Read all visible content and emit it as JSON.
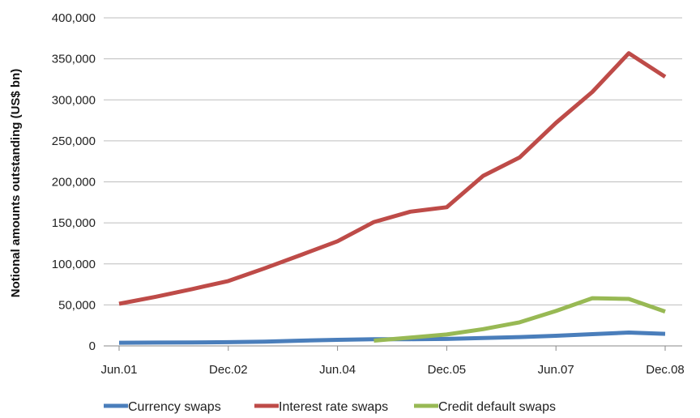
{
  "chart_data": {
    "type": "line",
    "title": "",
    "xlabel": "",
    "ylabel": "Notional amounts outstanding (US$ bn)",
    "ylim": [
      0,
      400000
    ],
    "yticks": [
      0,
      50000,
      100000,
      150000,
      200000,
      250000,
      300000,
      350000,
      400000
    ],
    "ytick_labels": [
      "0",
      "50,000",
      "100,000",
      "150,000",
      "200,000",
      "250,000",
      "300,000",
      "350,000",
      "400,000"
    ],
    "x": [
      "Jun.01",
      "Dec.01",
      "Jun.02",
      "Dec.02",
      "Jun.03",
      "Dec.03",
      "Jun.04",
      "Dec.04",
      "Jun.05",
      "Dec.05",
      "Jun.06",
      "Dec.06",
      "Jun.07",
      "Dec.07",
      "Jun.08",
      "Dec.08"
    ],
    "xtick_labels": [
      "Jun.01",
      "Dec.02",
      "Jun.04",
      "Dec.05",
      "Jun.07",
      "Dec.08"
    ],
    "grid": true,
    "legend_position": "bottom",
    "series": [
      {
        "name": "Currency swaps",
        "color": "#4a7ebb",
        "values": [
          3900,
          4000,
          4200,
          4500,
          5200,
          6400,
          7400,
          8200,
          8200,
          8500,
          9700,
          10800,
          12300,
          14300,
          16300,
          14700
        ]
      },
      {
        "name": "Interest rate swaps",
        "color": "#be4b48",
        "values": [
          51400,
          59900,
          69200,
          79100,
          94600,
          111000,
          127600,
          151000,
          163700,
          169100,
          207300,
          229700,
          271900,
          309600,
          356800,
          328100
        ]
      },
      {
        "name": "Credit default swaps",
        "color": "#98b954",
        "values": [
          null,
          null,
          null,
          null,
          null,
          null,
          null,
          6400,
          10200,
          13900,
          20400,
          28700,
          42600,
          58200,
          57300,
          41900
        ]
      }
    ]
  }
}
